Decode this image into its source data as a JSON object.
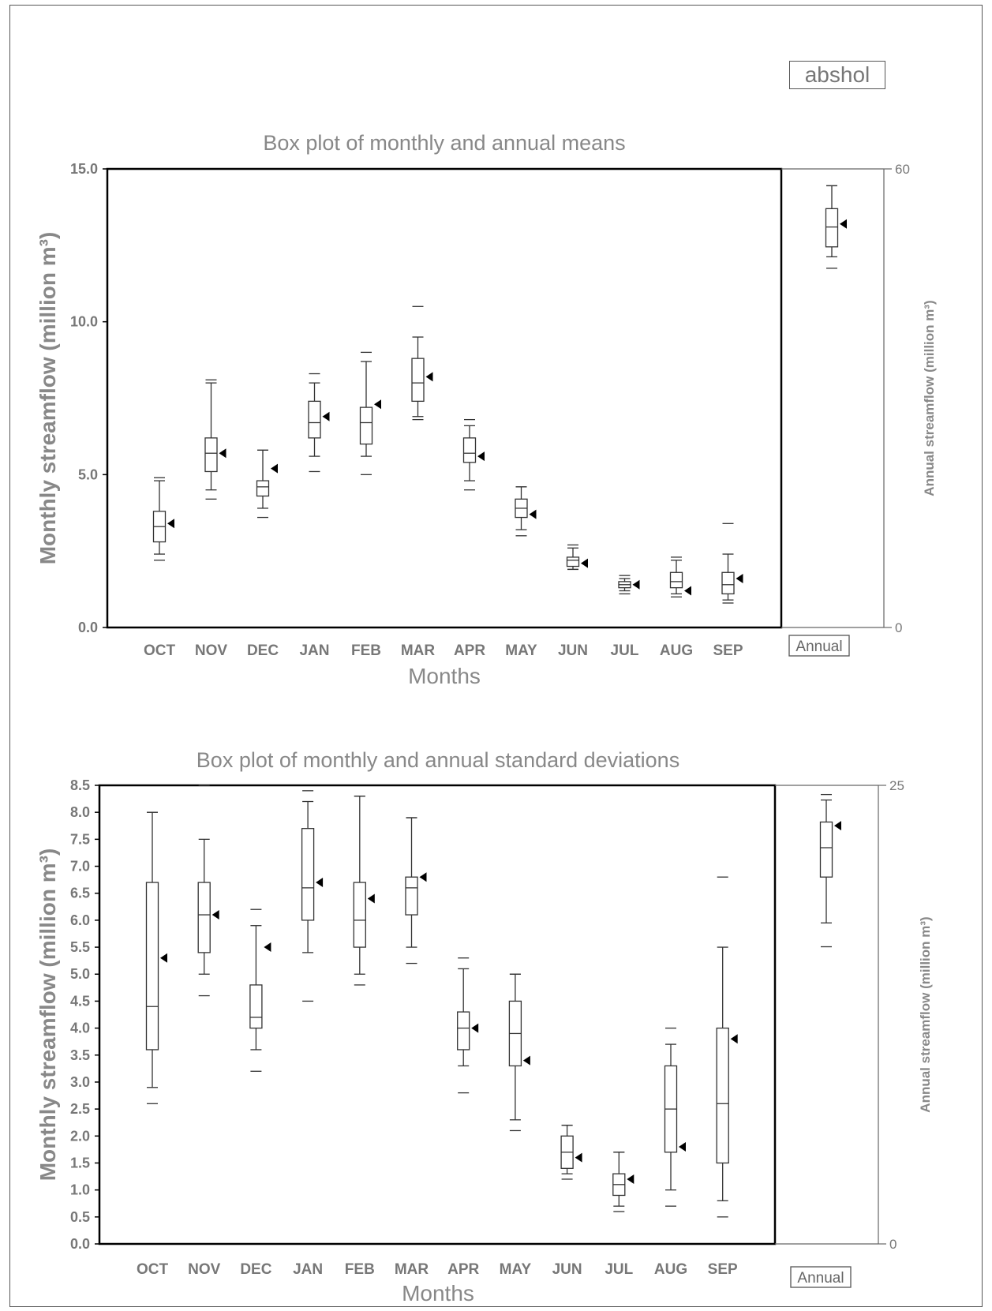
{
  "tag_label": "abshol",
  "chart_data": [
    {
      "type": "box",
      "title": "Box plot of monthly and annual means",
      "xlabel": "Months",
      "ylabel": "Monthly streamflow (million m³)",
      "ylabel_right": "Annual streamflow (million m³)",
      "ylim": [
        0,
        15
      ],
      "yticks": [
        "0.0",
        "5.0",
        "10.0",
        "15.0"
      ],
      "ytick_values": [
        0,
        5,
        10,
        15
      ],
      "ylim_right": [
        0,
        60
      ],
      "yticks_right": [
        "0",
        "60"
      ],
      "ytick_right_values": [
        0,
        60
      ],
      "categories": [
        "OCT",
        "NOV",
        "DEC",
        "JAN",
        "FEB",
        "MAR",
        "APR",
        "MAY",
        "JUN",
        "JUL",
        "AUG",
        "SEP"
      ],
      "boxes": [
        {
          "min": 2.2,
          "whisker_low": 2.4,
          "q1": 2.8,
          "median": 3.3,
          "q3": 3.8,
          "whisker_high": 4.8,
          "max": 4.9,
          "mean": 3.4
        },
        {
          "min": 4.2,
          "whisker_low": 4.5,
          "q1": 5.1,
          "median": 5.7,
          "q3": 6.2,
          "whisker_high": 8.0,
          "max": 8.1,
          "mean": 5.7
        },
        {
          "min": 3.6,
          "whisker_low": 3.9,
          "q1": 4.3,
          "median": 4.6,
          "q3": 4.8,
          "whisker_high": 5.8,
          "max": 5.8,
          "mean": 5.2
        },
        {
          "min": 5.1,
          "whisker_low": 5.6,
          "q1": 6.2,
          "median": 6.7,
          "q3": 7.4,
          "whisker_high": 8.0,
          "max": 8.3,
          "mean": 6.9
        },
        {
          "min": 5.0,
          "whisker_low": 5.6,
          "q1": 6.0,
          "median": 6.7,
          "q3": 7.2,
          "whisker_high": 8.7,
          "max": 9.0,
          "mean": 7.3
        },
        {
          "min": 6.8,
          "whisker_low": 6.9,
          "q1": 7.4,
          "median": 8.0,
          "q3": 8.8,
          "whisker_high": 9.5,
          "max": 10.5,
          "mean": 8.2
        },
        {
          "min": 4.5,
          "whisker_low": 4.8,
          "q1": 5.4,
          "median": 5.7,
          "q3": 6.2,
          "whisker_high": 6.6,
          "max": 6.8,
          "mean": 5.6
        },
        {
          "min": 3.0,
          "whisker_low": 3.2,
          "q1": 3.6,
          "median": 3.9,
          "q3": 4.2,
          "whisker_high": 4.6,
          "max": 4.6,
          "mean": 3.7
        },
        {
          "min": 1.9,
          "whisker_low": 1.9,
          "q1": 2.0,
          "median": 2.2,
          "q3": 2.3,
          "whisker_high": 2.6,
          "max": 2.7,
          "mean": 2.1
        },
        {
          "min": 1.1,
          "whisker_low": 1.2,
          "q1": 1.3,
          "median": 1.4,
          "q3": 1.5,
          "whisker_high": 1.6,
          "max": 1.7,
          "mean": 1.4
        },
        {
          "min": 1.0,
          "whisker_low": 1.1,
          "q1": 1.3,
          "median": 1.5,
          "q3": 1.8,
          "whisker_high": 2.2,
          "max": 2.3,
          "mean": 1.2
        },
        {
          "min": 0.8,
          "whisker_low": 0.9,
          "q1": 1.1,
          "median": 1.4,
          "q3": 1.8,
          "whisker_high": 2.4,
          "max": 3.4,
          "mean": 1.6
        }
      ],
      "annual": {
        "label": "Annual",
        "min": 47,
        "whisker_low": 48.5,
        "q1": 49.8,
        "median": 52.4,
        "q3": 54.8,
        "whisker_high": 57.8,
        "max": 57.8,
        "mean": 52.8
      }
    },
    {
      "type": "box",
      "title": "Box plot of monthly and annual standard deviations",
      "xlabel": "Months",
      "ylabel": "Monthly streamflow (million m³)",
      "ylabel_right": "Annual streamflow (million m³)",
      "ylim": [
        0,
        8.5
      ],
      "yticks": [
        "0.0",
        "0.5",
        "1.0",
        "1.5",
        "2.0",
        "2.5",
        "3.0",
        "3.5",
        "4.0",
        "4.5",
        "5.0",
        "5.5",
        "6.0",
        "6.5",
        "7.0",
        "7.5",
        "8.0",
        "8.5"
      ],
      "ytick_values": [
        0,
        0.5,
        1,
        1.5,
        2,
        2.5,
        3,
        3.5,
        4,
        4.5,
        5,
        5.5,
        6,
        6.5,
        7,
        7.5,
        8,
        8.5
      ],
      "ylim_right": [
        0,
        25
      ],
      "yticks_right": [
        "0",
        "25"
      ],
      "ytick_right_values": [
        0,
        25
      ],
      "categories": [
        "OCT",
        "NOV",
        "DEC",
        "JAN",
        "FEB",
        "MAR",
        "APR",
        "MAY",
        "JUN",
        "JUL",
        "AUG",
        "SEP"
      ],
      "boxes": [
        {
          "min": 2.6,
          "whisker_low": 2.9,
          "q1": 3.6,
          "median": 4.4,
          "q3": 6.7,
          "whisker_high": 8.0,
          "max": 8.0,
          "mean": 5.3
        },
        {
          "min": 4.6,
          "whisker_low": 5.0,
          "q1": 5.4,
          "median": 6.1,
          "q3": 6.7,
          "whisker_high": 7.5,
          "max": 8.5,
          "mean": 6.1
        },
        {
          "min": 3.2,
          "whisker_low": 3.6,
          "q1": 4.0,
          "median": 4.2,
          "q3": 4.8,
          "whisker_high": 5.9,
          "max": 6.2,
          "mean": 5.5
        },
        {
          "min": 4.5,
          "whisker_low": 5.4,
          "q1": 6.0,
          "median": 6.6,
          "q3": 7.7,
          "whisker_high": 8.2,
          "max": 8.4,
          "mean": 6.7
        },
        {
          "min": 4.8,
          "whisker_low": 5.0,
          "q1": 5.5,
          "median": 6.0,
          "q3": 6.7,
          "whisker_high": 8.3,
          "max": 8.3,
          "mean": 6.4
        },
        {
          "min": 5.2,
          "whisker_low": 5.5,
          "q1": 6.1,
          "median": 6.6,
          "q3": 6.8,
          "whisker_high": 7.9,
          "max": 7.9,
          "mean": 6.8
        },
        {
          "min": 2.8,
          "whisker_low": 3.3,
          "q1": 3.6,
          "median": 4.0,
          "q3": 4.3,
          "whisker_high": 5.1,
          "max": 5.3,
          "mean": 4.0
        },
        {
          "min": 2.1,
          "whisker_low": 2.3,
          "q1": 3.3,
          "median": 3.9,
          "q3": 4.5,
          "whisker_high": 5.0,
          "max": 5.0,
          "mean": 3.4
        },
        {
          "min": 1.2,
          "whisker_low": 1.3,
          "q1": 1.4,
          "median": 1.7,
          "q3": 2.0,
          "whisker_high": 2.2,
          "max": 2.2,
          "mean": 1.6
        },
        {
          "min": 0.6,
          "whisker_low": 0.7,
          "q1": 0.9,
          "median": 1.1,
          "q3": 1.3,
          "whisker_high": 1.7,
          "max": 1.7,
          "mean": 1.2
        },
        {
          "min": 0.7,
          "whisker_low": 1.0,
          "q1": 1.7,
          "median": 2.5,
          "q3": 3.3,
          "whisker_high": 3.7,
          "max": 4.0,
          "mean": 1.8
        },
        {
          "min": 0.5,
          "whisker_low": 0.8,
          "q1": 1.5,
          "median": 2.6,
          "q3": 4.0,
          "whisker_high": 5.5,
          "max": 6.8,
          "mean": 3.8
        }
      ],
      "annual": {
        "label": "Annual",
        "min": 16.2,
        "whisker_low": 17.5,
        "q1": 20.0,
        "median": 21.6,
        "q3": 23.0,
        "whisker_high": 24.2,
        "max": 24.5,
        "mean": 22.8
      }
    }
  ]
}
